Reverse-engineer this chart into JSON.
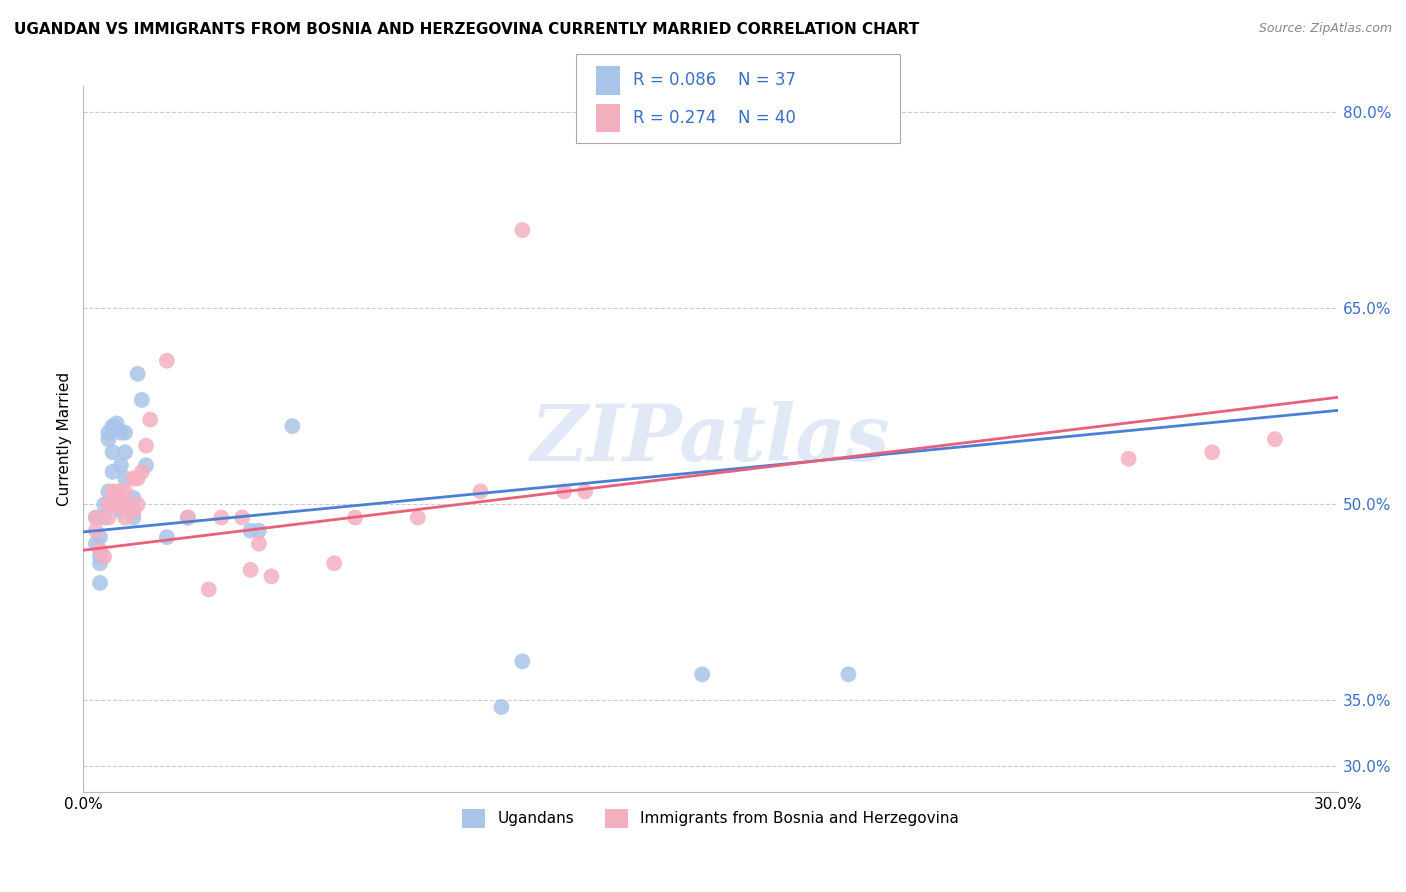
{
  "title": "UGANDAN VS IMMIGRANTS FROM BOSNIA AND HERZEGOVINA CURRENTLY MARRIED CORRELATION CHART",
  "source": "Source: ZipAtlas.com",
  "ylabel": "Currently Married",
  "xlim": [
    0.0,
    0.3
  ],
  "ylim": [
    0.28,
    0.82
  ],
  "xticks": [
    0.0,
    0.05,
    0.1,
    0.15,
    0.2,
    0.25,
    0.3
  ],
  "xtick_labels": [
    "0.0%",
    "",
    "",
    "",
    "",
    "",
    "30.0%"
  ],
  "yticks_right": [
    0.3,
    0.35,
    0.5,
    0.65,
    0.8
  ],
  "ytick_labels_right": [
    "30.0%",
    "35.0%",
    "50.0%",
    "65.0%",
    "80.0%"
  ],
  "blue_R": 0.086,
  "blue_N": 37,
  "pink_R": 0.274,
  "pink_N": 40,
  "blue_color": "#a8c4e8",
  "pink_color": "#f5b0c0",
  "blue_line_color": "#4a7fd4",
  "pink_line_color": "#e8607a",
  "legend_R_color": "#3a6fc4",
  "watermark": "ZIPatlas",
  "blue_line_y0": 0.479,
  "blue_line_y1": 0.572,
  "pink_line_y0": 0.465,
  "pink_line_y1": 0.582,
  "blue_scatter_x": [
    0.003,
    0.003,
    0.004,
    0.004,
    0.004,
    0.004,
    0.005,
    0.005,
    0.006,
    0.006,
    0.006,
    0.007,
    0.007,
    0.007,
    0.008,
    0.008,
    0.009,
    0.009,
    0.009,
    0.01,
    0.01,
    0.01,
    0.011,
    0.012,
    0.012,
    0.013,
    0.014,
    0.015,
    0.04,
    0.042,
    0.05,
    0.1,
    0.105,
    0.148,
    0.183,
    0.02,
    0.025
  ],
  "blue_scatter_y": [
    0.49,
    0.47,
    0.475,
    0.455,
    0.46,
    0.44,
    0.5,
    0.49,
    0.555,
    0.55,
    0.51,
    0.54,
    0.56,
    0.525,
    0.558,
    0.562,
    0.53,
    0.555,
    0.495,
    0.54,
    0.555,
    0.52,
    0.5,
    0.505,
    0.49,
    0.6,
    0.58,
    0.53,
    0.48,
    0.48,
    0.56,
    0.345,
    0.38,
    0.37,
    0.37,
    0.475,
    0.49
  ],
  "pink_scatter_x": [
    0.003,
    0.003,
    0.004,
    0.005,
    0.006,
    0.006,
    0.007,
    0.007,
    0.008,
    0.008,
    0.009,
    0.009,
    0.01,
    0.01,
    0.011,
    0.012,
    0.012,
    0.013,
    0.013,
    0.014,
    0.015,
    0.016,
    0.02,
    0.025,
    0.03,
    0.033,
    0.038,
    0.04,
    0.042,
    0.045,
    0.06,
    0.065,
    0.08,
    0.095,
    0.105,
    0.115,
    0.12,
    0.25,
    0.27,
    0.285
  ],
  "pink_scatter_y": [
    0.48,
    0.49,
    0.465,
    0.46,
    0.5,
    0.49,
    0.51,
    0.5,
    0.51,
    0.5,
    0.51,
    0.5,
    0.51,
    0.49,
    0.5,
    0.495,
    0.52,
    0.52,
    0.5,
    0.525,
    0.545,
    0.565,
    0.61,
    0.49,
    0.435,
    0.49,
    0.49,
    0.45,
    0.47,
    0.445,
    0.455,
    0.49,
    0.49,
    0.51,
    0.71,
    0.51,
    0.51,
    0.535,
    0.54,
    0.55
  ],
  "legend_label_blue": "Ugandans",
  "legend_label_pink": "Immigrants from Bosnia and Herzegovina"
}
